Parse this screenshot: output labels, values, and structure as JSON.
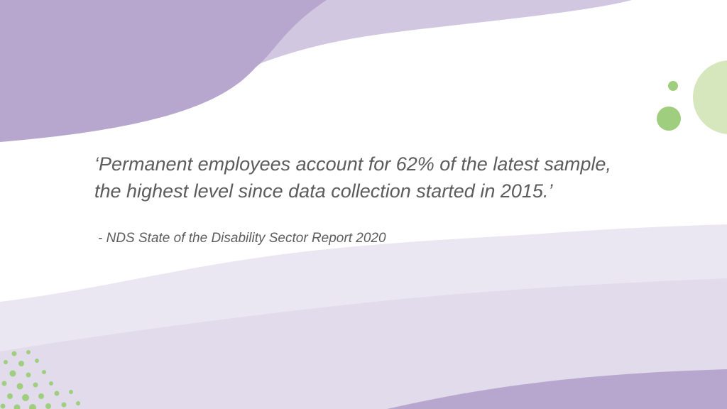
{
  "slide": {
    "quote_line_1": "‘Permanent employees account for 62% of the latest sample,",
    "quote_line_2": "the highest level since data collection started in 2015.’",
    "attribution": "- NDS State of the Disability Sector Report 2020"
  },
  "colors": {
    "background": "#ffffff",
    "purple_dark": "#b7a7cf",
    "purple_mid": "#d2c7e1",
    "lavender_light": "#ebe7f2",
    "lavender_mid": "#e1dbeb",
    "green_accent": "#9fcf7e",
    "green_pale": "#d7e7bd",
    "text": "#5c5c5c"
  }
}
